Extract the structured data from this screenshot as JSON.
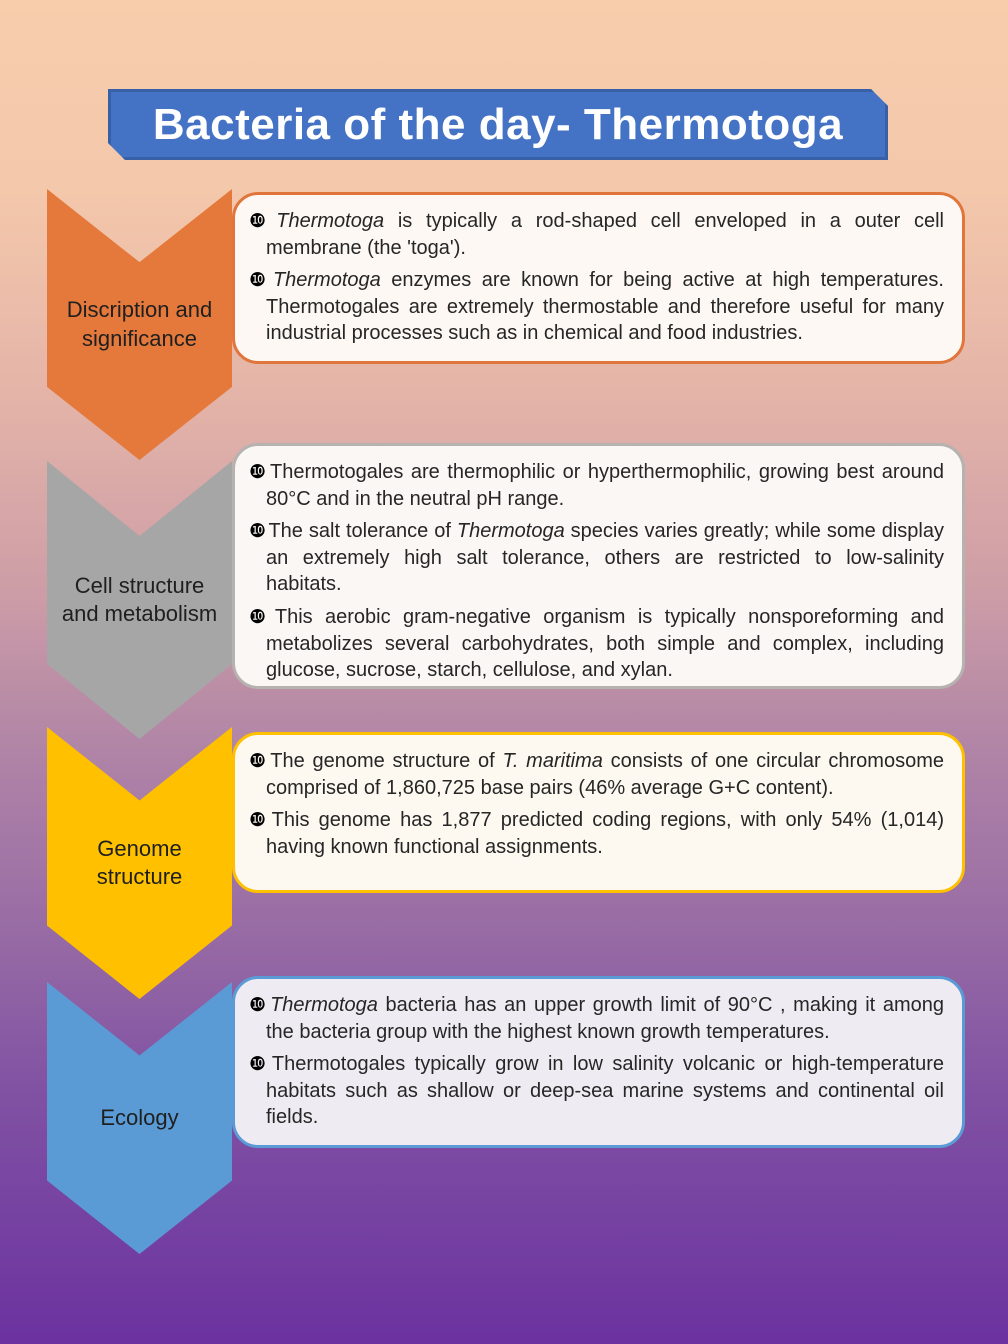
{
  "title": "Bacteria of the day- Thermotoga",
  "bullet_glyph": "❿",
  "colors": {
    "banner_fill": "#4472C4",
    "banner_edge": "#2F528F",
    "banner_text": "#FFFFFF",
    "background_top": "#F7CDAC",
    "background_bottom": "#6B32A0",
    "body_text": "#262626",
    "chevron_label_text": "#1F1F1F"
  },
  "sections": [
    {
      "label": "Discription and\nsignificance",
      "chevron_color": "#E4793B",
      "box_border": "#E0763B",
      "box_fill": "#FDF8F3",
      "bullets": [
        [
          {
            "text": "Thermotoga",
            "italic": true
          },
          {
            "text": " is typically a rod-shaped cell enveloped in a outer cell membrane (the 'toga')."
          }
        ],
        [
          {
            "text": "Thermotoga",
            "italic": true
          },
          {
            "text": " enzymes are known for being active at high temperatures. Thermotogales are extremely thermostable and therefore useful for many industrial processes such as in chemical and food industries."
          }
        ]
      ]
    },
    {
      "label": "Cell structure\nand metabolism",
      "chevron_color": "#A6A6A6",
      "box_border": "#B5B2AF",
      "box_fill": "#FBF7F5",
      "bullets": [
        [
          {
            "text": "Thermotogales are thermophilic or hyperthermophilic, growing best around 80°C and in the neutral pH range."
          }
        ],
        [
          {
            "text": "The salt tolerance of "
          },
          {
            "text": "Thermotoga",
            "italic": true
          },
          {
            "text": " species varies greatly; while some display an extremely high salt tolerance, others are restricted to low-salinity habitats."
          }
        ],
        [
          {
            "text": "This aerobic gram-negative organism is typically nonsporeforming and metabolizes several carbohydrates, both simple and complex, including glucose, sucrose, starch, cellulose, and xylan."
          }
        ]
      ]
    },
    {
      "label": "Genome\nstructure",
      "chevron_color": "#FFC000",
      "box_border": "#FFC000",
      "box_fill": "#FDF8F0",
      "bullets": [
        [
          {
            "text": "The genome structure of "
          },
          {
            "text": "T. maritima",
            "italic": true
          },
          {
            "text": " consists of one circular chromosome comprised of 1,860,725 base pairs (46% average G+C content)."
          }
        ],
        [
          {
            "text": "This genome has 1,877 predicted coding regions, with only 54% (1,014) having known functional assignments."
          }
        ]
      ]
    },
    {
      "label": "Ecology",
      "chevron_color": "#5B9BD5",
      "box_border": "#5B9BD5",
      "box_fill": "#EFEBF3",
      "bullets": [
        [
          {
            "text": "Thermotoga",
            "italic": true
          },
          {
            "text": " bacteria has an upper growth limit of 90°C , making it among the bacteria group with the highest known growth temperatures."
          }
        ],
        [
          {
            "text": "Thermotogales typically grow in low salinity volcanic or high-temperature habitats such as shallow or deep-sea marine systems and continental oil fields."
          }
        ]
      ]
    }
  ]
}
